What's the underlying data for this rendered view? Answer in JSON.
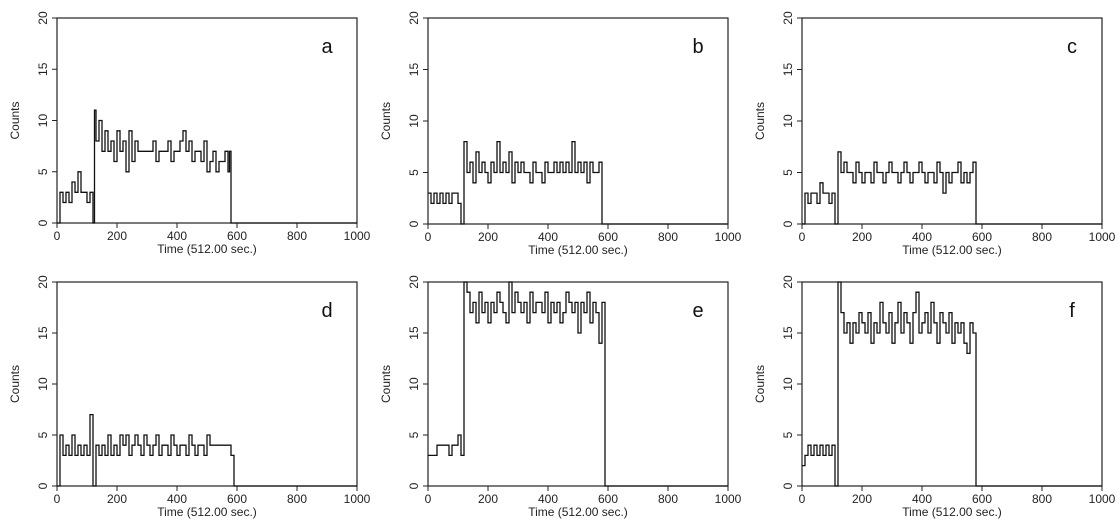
{
  "chart_data": [
    {
      "type": "line",
      "label": "a",
      "xlabel": "Time (512.00 sec.)",
      "ylabel": "Counts",
      "xlim": [
        0,
        1000
      ],
      "ylim": [
        0,
        20
      ],
      "xticks": [
        0,
        200,
        400,
        600,
        800,
        1000
      ],
      "yticks": [
        0,
        5,
        10,
        15,
        20
      ],
      "x": [
        0,
        10,
        20,
        30,
        40,
        50,
        60,
        70,
        80,
        90,
        100,
        110,
        120,
        125,
        130,
        140,
        150,
        160,
        170,
        180,
        190,
        200,
        210,
        220,
        230,
        240,
        250,
        260,
        270,
        280,
        290,
        300,
        310,
        320,
        330,
        340,
        350,
        360,
        370,
        380,
        390,
        400,
        410,
        420,
        430,
        440,
        450,
        460,
        470,
        480,
        490,
        500,
        510,
        520,
        530,
        540,
        550,
        560,
        570,
        575,
        580,
        600,
        700,
        800,
        900,
        1000
      ],
      "y": [
        0,
        3,
        2,
        3,
        2,
        4,
        3,
        5,
        3,
        3,
        2,
        3,
        0,
        11,
        8,
        10,
        7,
        9,
        7,
        8,
        6,
        9,
        7,
        8,
        5,
        9,
        6,
        8,
        7,
        7,
        7,
        7,
        7,
        8,
        6,
        7,
        7,
        7,
        8,
        6,
        7,
        7,
        8,
        9,
        7,
        8,
        6,
        7,
        7,
        6,
        8,
        5,
        6,
        7,
        5,
        6,
        6,
        7,
        5,
        7,
        0,
        0,
        0,
        0,
        0,
        0
      ]
    },
    {
      "type": "line",
      "label": "b",
      "xlabel": "Time (512.00 sec.)",
      "ylabel": "Counts",
      "xlim": [
        0,
        1000
      ],
      "ylim": [
        0,
        20
      ],
      "xticks": [
        0,
        200,
        400,
        600,
        800,
        1000
      ],
      "yticks": [
        0,
        5,
        10,
        15,
        20
      ],
      "x": [
        0,
        10,
        20,
        30,
        40,
        50,
        60,
        70,
        80,
        90,
        100,
        110,
        120,
        130,
        140,
        150,
        160,
        170,
        180,
        190,
        200,
        210,
        220,
        230,
        240,
        250,
        260,
        270,
        280,
        290,
        300,
        310,
        320,
        330,
        340,
        350,
        360,
        370,
        380,
        390,
        400,
        410,
        420,
        430,
        440,
        450,
        460,
        470,
        480,
        490,
        500,
        510,
        520,
        530,
        540,
        550,
        560,
        570,
        580,
        590,
        600,
        700,
        800,
        900,
        1000
      ],
      "y": [
        3,
        2,
        3,
        2,
        3,
        2,
        3,
        2,
        3,
        3,
        2,
        0,
        8,
        5,
        6,
        4,
        7,
        5,
        6,
        5,
        4,
        6,
        5,
        8,
        5,
        6,
        5,
        7,
        4,
        6,
        5,
        6,
        5,
        5,
        4,
        6,
        5,
        5,
        4,
        6,
        5,
        5,
        6,
        5,
        6,
        5,
        6,
        5,
        8,
        5,
        6,
        5,
        6,
        4,
        6,
        5,
        5,
        6,
        0,
        0,
        0,
        0,
        0,
        0,
        0
      ]
    },
    {
      "type": "line",
      "label": "c",
      "xlabel": "Time (512.00 sec.)",
      "ylabel": "Counts",
      "xlim": [
        0,
        1000
      ],
      "ylim": [
        0,
        20
      ],
      "xticks": [
        0,
        200,
        400,
        600,
        800,
        1000
      ],
      "yticks": [
        0,
        5,
        10,
        15,
        20
      ],
      "x": [
        0,
        10,
        20,
        30,
        40,
        50,
        60,
        70,
        80,
        90,
        100,
        110,
        120,
        130,
        140,
        150,
        160,
        170,
        180,
        190,
        200,
        210,
        220,
        230,
        240,
        250,
        260,
        270,
        280,
        290,
        300,
        310,
        320,
        330,
        340,
        350,
        360,
        370,
        380,
        390,
        400,
        410,
        420,
        430,
        440,
        450,
        460,
        470,
        480,
        490,
        500,
        510,
        520,
        530,
        540,
        550,
        560,
        570,
        580,
        590,
        600,
        700,
        800,
        900,
        1000
      ],
      "y": [
        0,
        3,
        2,
        3,
        3,
        2,
        4,
        3,
        3,
        2,
        3,
        0,
        7,
        5,
        6,
        5,
        5,
        4,
        6,
        5,
        4,
        5,
        5,
        4,
        6,
        5,
        5,
        4,
        5,
        6,
        5,
        5,
        4,
        5,
        6,
        5,
        4,
        5,
        5,
        6,
        5,
        4,
        5,
        5,
        4,
        6,
        5,
        3,
        5,
        4,
        5,
        5,
        6,
        4,
        5,
        4,
        5,
        6,
        0,
        0,
        0,
        0,
        0,
        0,
        0
      ]
    },
    {
      "type": "line",
      "label": "d",
      "xlabel": "Time (512.00 sec.)",
      "ylabel": "Counts",
      "xlim": [
        0,
        1000
      ],
      "ylim": [
        0,
        20
      ],
      "xticks": [
        0,
        200,
        400,
        600,
        800,
        1000
      ],
      "yticks": [
        0,
        5,
        10,
        15,
        20
      ],
      "x": [
        0,
        10,
        20,
        30,
        40,
        50,
        60,
        70,
        80,
        90,
        100,
        110,
        120,
        130,
        140,
        150,
        160,
        170,
        180,
        190,
        200,
        210,
        220,
        230,
        240,
        250,
        260,
        270,
        280,
        290,
        300,
        310,
        320,
        330,
        340,
        350,
        360,
        370,
        380,
        390,
        400,
        410,
        420,
        430,
        440,
        450,
        460,
        470,
        480,
        490,
        500,
        510,
        520,
        530,
        540,
        550,
        560,
        570,
        580,
        590,
        600,
        700,
        800,
        900,
        1000
      ],
      "y": [
        0,
        5,
        3,
        4,
        3,
        5,
        3,
        4,
        3,
        4,
        3,
        7,
        0,
        4,
        3,
        4,
        3,
        5,
        3,
        4,
        3,
        5,
        4,
        5,
        3,
        4,
        5,
        4,
        3,
        5,
        4,
        3,
        4,
        5,
        3,
        4,
        4,
        3,
        5,
        4,
        3,
        4,
        4,
        3,
        5,
        4,
        3,
        4,
        4,
        3,
        5,
        4,
        4,
        4,
        4,
        4,
        4,
        4,
        3,
        0,
        0,
        0,
        0,
        0,
        0
      ]
    },
    {
      "type": "line",
      "label": "e",
      "xlabel": "Time (512.00 sec.)",
      "ylabel": "Counts",
      "xlim": [
        0,
        1000
      ],
      "ylim": [
        0,
        20
      ],
      "xticks": [
        0,
        200,
        400,
        600,
        800,
        1000
      ],
      "yticks": [
        0,
        5,
        10,
        15,
        20
      ],
      "x": [
        0,
        10,
        20,
        30,
        40,
        50,
        60,
        70,
        80,
        90,
        100,
        110,
        120,
        130,
        140,
        150,
        160,
        170,
        180,
        190,
        200,
        210,
        220,
        230,
        240,
        250,
        260,
        270,
        280,
        290,
        300,
        310,
        320,
        330,
        340,
        350,
        360,
        370,
        380,
        390,
        400,
        410,
        420,
        430,
        440,
        450,
        460,
        470,
        480,
        490,
        500,
        510,
        520,
        530,
        540,
        550,
        560,
        570,
        580,
        590,
        600,
        700,
        800,
        900,
        1000
      ],
      "y": [
        3,
        3,
        3,
        4,
        4,
        4,
        4,
        3,
        4,
        4,
        5,
        3,
        20,
        19,
        17,
        18,
        16,
        19,
        17,
        18,
        16,
        18,
        17,
        19,
        18,
        17,
        16,
        20,
        17,
        19,
        18,
        17,
        18,
        16,
        19,
        17,
        18,
        18,
        17,
        19,
        16,
        18,
        17,
        18,
        16,
        17,
        19,
        18,
        17,
        18,
        15,
        18,
        17,
        19,
        16,
        18,
        17,
        14,
        18,
        0,
        0,
        0,
        0,
        0,
        0
      ]
    },
    {
      "type": "line",
      "label": "f",
      "xlabel": "Time (512.00 sec.)",
      "ylabel": "Counts",
      "xlim": [
        0,
        1000
      ],
      "ylim": [
        0,
        20
      ],
      "xticks": [
        0,
        200,
        400,
        600,
        800,
        1000
      ],
      "yticks": [
        0,
        5,
        10,
        15,
        20
      ],
      "x": [
        0,
        10,
        20,
        30,
        40,
        50,
        60,
        70,
        80,
        90,
        100,
        110,
        120,
        130,
        140,
        150,
        160,
        170,
        180,
        190,
        200,
        210,
        220,
        230,
        240,
        250,
        260,
        270,
        280,
        290,
        300,
        310,
        320,
        330,
        340,
        350,
        360,
        370,
        380,
        390,
        400,
        410,
        420,
        430,
        440,
        450,
        460,
        470,
        480,
        490,
        500,
        510,
        520,
        530,
        540,
        550,
        560,
        570,
        580,
        590,
        600,
        700,
        800,
        900,
        1000
      ],
      "y": [
        2,
        3,
        4,
        3,
        4,
        3,
        4,
        3,
        4,
        3,
        4,
        0,
        20,
        17,
        15,
        16,
        14,
        16,
        15,
        17,
        16,
        15,
        17,
        14,
        16,
        15,
        18,
        16,
        15,
        17,
        14,
        16,
        18,
        15,
        17,
        16,
        14,
        17,
        19,
        15,
        16,
        17,
        15,
        18,
        16,
        14,
        17,
        16,
        15,
        17,
        14,
        16,
        15,
        16,
        14,
        13,
        16,
        15,
        0,
        0,
        0,
        0,
        0,
        0,
        0
      ]
    }
  ]
}
